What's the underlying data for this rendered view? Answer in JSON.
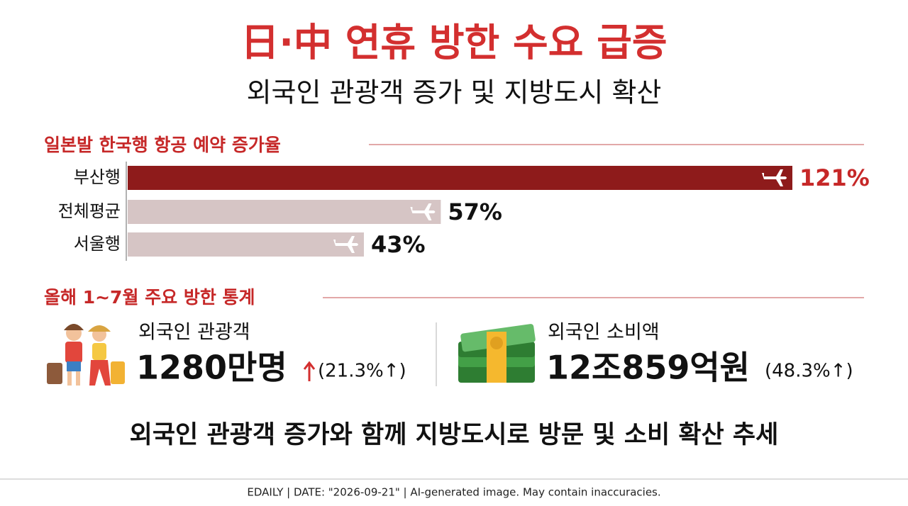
{
  "title": "日·中 연휴 방한 수요 급증",
  "subtitle": "외국인 관광객 증가 및 지방도시 확산",
  "chart_data": {
    "type": "bar",
    "orientation": "horizontal",
    "title": "일본발 한국행 항공 예약 증가율",
    "categories": [
      "부산행",
      "전체평균",
      "서울행"
    ],
    "values": [
      121,
      57,
      43
    ],
    "value_labels": [
      "121%",
      "57%",
      "43%"
    ],
    "colors": [
      "#8e1b1b",
      "#d6c5c5",
      "#d6c5c5"
    ],
    "label_colors": [
      "#c62828",
      "#111111",
      "#111111"
    ]
  },
  "stats_title": "올해 1~7월 주요 방한 통계",
  "stats": [
    {
      "label": "외국인 관광객",
      "value": "1280만명",
      "change": "(21.3%↑)"
    },
    {
      "label": "외국인 소비액",
      "value": "12조859억원",
      "change": "(48.3%↑)"
    }
  ],
  "conclusion": "외국인 관광객 증가와 함께 지방도시로 방문 및 소비 확산 추세",
  "footer": "EDAILY | DATE: \"2026-09-21\" | AI-generated image. May contain inaccuracies."
}
